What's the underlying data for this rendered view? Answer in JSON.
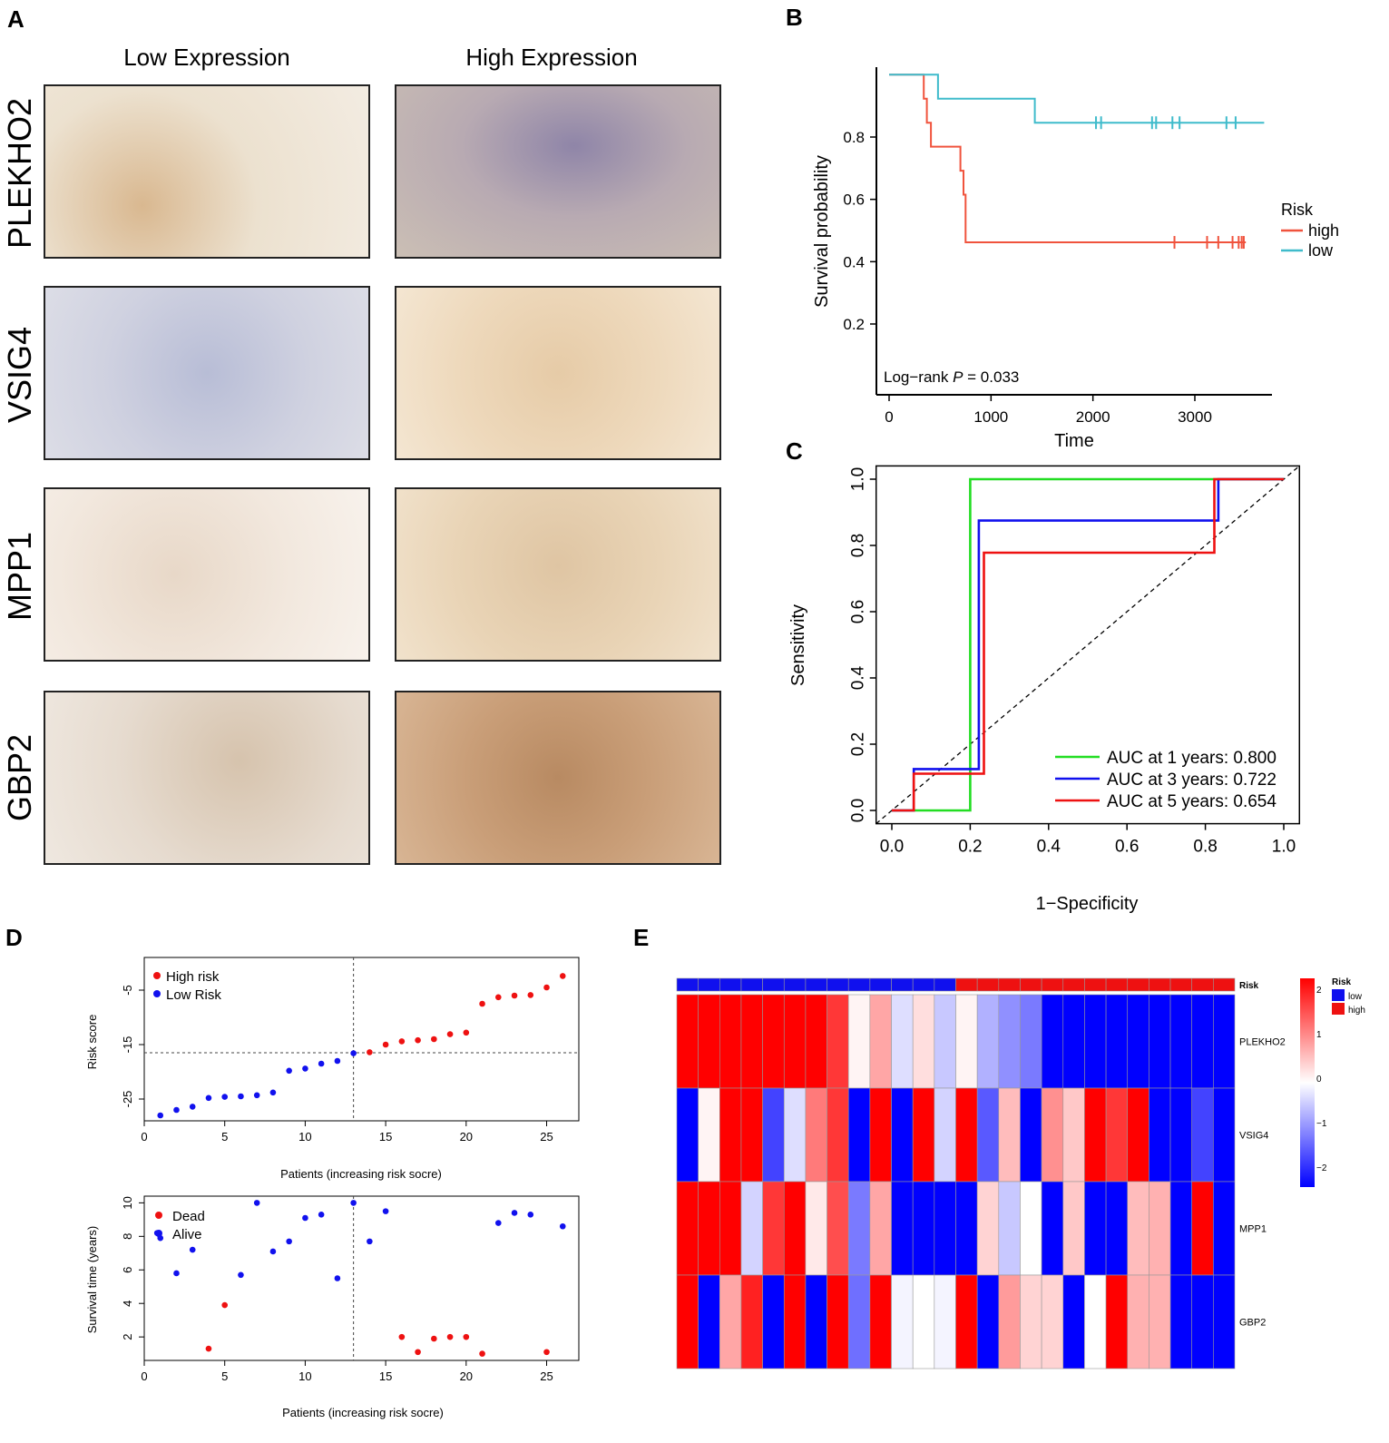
{
  "panel_letters": [
    "A",
    "B",
    "C",
    "D",
    "E"
  ],
  "panel_a": {
    "column_headers": [
      "Low Expression",
      "High Expression"
    ],
    "genes": [
      "PLEKHO2",
      "VSIG4",
      "MPP1",
      "GBP2"
    ]
  },
  "chart_data": [
    {
      "id": "B",
      "type": "line",
      "subtype": "kaplan-meier",
      "xlabel": "Time",
      "ylabel": "Survival probability",
      "x_ticks": [
        0,
        1000,
        2000,
        3000
      ],
      "y_ticks": [
        0.2,
        0.4,
        0.6,
        0.8
      ],
      "xlim": [
        -50,
        3700
      ],
      "ylim": [
        0.0,
        1.0
      ],
      "annotation": "Log−rank P = 0.033",
      "annotation_prefix": "Log−rank ",
      "annotation_p": "P",
      "annotation_suffix": " = 0.033",
      "legend_title": "Risk",
      "series": [
        {
          "name": "high",
          "color": "#F0533D",
          "steps": [
            [
              0,
              1.0
            ],
            [
              340,
              1.0
            ],
            [
              340,
              0.923
            ],
            [
              370,
              0.923
            ],
            [
              370,
              0.846
            ],
            [
              410,
              0.846
            ],
            [
              410,
              0.769
            ],
            [
              700,
              0.769
            ],
            [
              700,
              0.692
            ],
            [
              730,
              0.692
            ],
            [
              730,
              0.615
            ],
            [
              750,
              0.615
            ],
            [
              750,
              0.462
            ],
            [
              3500,
              0.462
            ]
          ],
          "censors": [
            [
              2800,
              0.462
            ],
            [
              3120,
              0.462
            ],
            [
              3230,
              0.462
            ],
            [
              3370,
              0.462
            ],
            [
              3430,
              0.462
            ],
            [
              3460,
              0.462
            ],
            [
              3480,
              0.462
            ]
          ]
        },
        {
          "name": "low",
          "color": "#3FBBCB",
          "steps": [
            [
              0,
              1.0
            ],
            [
              480,
              1.0
            ],
            [
              480,
              0.923
            ],
            [
              1430,
              0.923
            ],
            [
              1430,
              0.846
            ],
            [
              3680,
              0.846
            ]
          ],
          "censors": [
            [
              2030,
              0.846
            ],
            [
              2080,
              0.846
            ],
            [
              2580,
              0.846
            ],
            [
              2620,
              0.846
            ],
            [
              2780,
              0.846
            ],
            [
              2850,
              0.846
            ],
            [
              3310,
              0.846
            ],
            [
              3400,
              0.846
            ]
          ]
        }
      ]
    },
    {
      "id": "C",
      "type": "line",
      "subtype": "roc",
      "xlabel": "1−Specificity",
      "ylabel": "Sensitivity",
      "x_ticks": [
        "0.0",
        "0.2",
        "0.4",
        "0.6",
        "0.8",
        "1.0"
      ],
      "y_ticks": [
        "0.0",
        "0.2",
        "0.4",
        "0.6",
        "0.8",
        "1.0"
      ],
      "xlim": [
        -0.04,
        1.04
      ],
      "ylim": [
        -0.04,
        1.04
      ],
      "series": [
        {
          "name": "AUC at 1 years: 0.800",
          "color": "#22DD22",
          "points": [
            [
              0,
              0
            ],
            [
              0.056,
              0
            ],
            [
              0.056,
              0
            ],
            [
              0.2,
              0
            ],
            [
              0.2,
              1.0
            ],
            [
              1.0,
              1.0
            ]
          ]
        },
        {
          "name": "AUC at 3 years: 0.722",
          "color": "#1010EE",
          "points": [
            [
              0,
              0
            ],
            [
              0.056,
              0
            ],
            [
              0.056,
              0.125
            ],
            [
              0.222,
              0.125
            ],
            [
              0.222,
              0.875
            ],
            [
              0.833,
              0.875
            ],
            [
              0.833,
              1.0
            ],
            [
              1.0,
              1.0
            ]
          ]
        },
        {
          "name": "AUC at 5 years: 0.654",
          "color": "#EE1111",
          "points": [
            [
              0,
              0
            ],
            [
              0.056,
              0
            ],
            [
              0.056,
              0.111
            ],
            [
              0.235,
              0.111
            ],
            [
              0.235,
              0.778
            ],
            [
              0.823,
              0.778
            ],
            [
              0.823,
              1.0
            ],
            [
              1.0,
              1.0
            ]
          ]
        }
      ]
    },
    {
      "id": "D-risk",
      "type": "scatter",
      "xlabel": "Patients (increasing risk socre)",
      "ylabel": "Risk score",
      "x_ticks": [
        0,
        5,
        10,
        15,
        20,
        25
      ],
      "y_ticks": [
        -25,
        -15,
        -5
      ],
      "xlim": [
        0,
        27
      ],
      "ylim": [
        -29,
        1
      ],
      "cutoff_x": 13,
      "cutoff_y": -16.5,
      "series": [
        {
          "name": "High risk",
          "color": "#EE1111",
          "x": [
            14,
            15,
            16,
            17,
            18,
            19,
            20,
            21,
            22,
            23,
            24,
            25,
            26
          ],
          "y": [
            -16.4,
            -15.0,
            -14.4,
            -14.2,
            -14.0,
            -13.1,
            -12.8,
            -7.5,
            -6.3,
            -6.0,
            -5.9,
            -4.5,
            -2.4
          ]
        },
        {
          "name": "Low Risk",
          "color": "#1111EE",
          "x": [
            1,
            2,
            3,
            4,
            5,
            6,
            7,
            8,
            9,
            10,
            11,
            12,
            13
          ],
          "y": [
            -28.0,
            -27.0,
            -26.4,
            -24.8,
            -24.6,
            -24.5,
            -24.3,
            -23.8,
            -19.8,
            -19.4,
            -18.5,
            -18.0,
            -16.6
          ]
        }
      ]
    },
    {
      "id": "D-survival",
      "type": "scatter",
      "xlabel": "Patients (increasing risk socre)",
      "ylabel": "Survival time (years)",
      "x_ticks": [
        0,
        5,
        10,
        15,
        20,
        25
      ],
      "y_ticks": [
        2,
        4,
        6,
        8,
        10
      ],
      "xlim": [
        0,
        27
      ],
      "ylim": [
        0.6,
        10.4
      ],
      "cutoff_x": 13,
      "series": [
        {
          "name": "Dead",
          "color": "#EE1111",
          "x": [
            4,
            5,
            16,
            17,
            18,
            19,
            20,
            21,
            25
          ],
          "y": [
            1.3,
            3.9,
            2.0,
            1.1,
            1.9,
            2.0,
            2.0,
            1.0,
            1.1
          ]
        },
        {
          "name": "Alive",
          "color": "#1111EE",
          "x": [
            0.8,
            1,
            2,
            3,
            6,
            7,
            8,
            9,
            10,
            11,
            12,
            13,
            14,
            15,
            22,
            23,
            24,
            26
          ],
          "y": [
            8.2,
            7.9,
            5.8,
            7.2,
            5.7,
            10.0,
            7.1,
            7.7,
            9.1,
            9.3,
            5.5,
            10.0,
            7.7,
            9.5,
            8.8,
            9.4,
            9.3,
            8.6
          ]
        }
      ]
    },
    {
      "id": "E",
      "type": "heatmap",
      "annotation_label": "Risk",
      "rows": [
        "PLEKHO2",
        "VSIG4",
        "MPP1",
        "GBP2"
      ],
      "risk_groups": [
        "low",
        "low",
        "low",
        "low",
        "low",
        "low",
        "low",
        "low",
        "low",
        "low",
        "low",
        "low",
        "low",
        "high",
        "high",
        "high",
        "high",
        "high",
        "high",
        "high",
        "high",
        "high",
        "high",
        "high",
        "high",
        "high"
      ],
      "values": [
        [
          2.4,
          2.4,
          2.4,
          2.4,
          2.4,
          2.4,
          2.4,
          1.8,
          0.1,
          0.8,
          -0.3,
          0.3,
          -0.5,
          0.1,
          -0.7,
          -1.0,
          -1.2,
          -2.3,
          -2.3,
          -2.3,
          -2.3,
          -2.3,
          -2.3,
          -2.3,
          -2.3,
          -2.3
        ],
        [
          -2.3,
          0.1,
          2.4,
          2.4,
          -1.7,
          -0.3,
          1.2,
          1.8,
          -2.3,
          2.4,
          -2.3,
          2.4,
          -0.4,
          2.4,
          -1.5,
          0.6,
          -2.3,
          1.0,
          0.5,
          2.4,
          1.8,
          2.4,
          -2.3,
          -2.3,
          -1.7,
          -2.3
        ],
        [
          2.4,
          2.4,
          2.4,
          -0.4,
          1.8,
          2.4,
          0.2,
          1.6,
          -1.2,
          0.8,
          -2.3,
          -2.3,
          -2.3,
          -2.3,
          0.4,
          -0.5,
          0.0,
          -2.3,
          0.5,
          -2.3,
          -2.3,
          0.6,
          0.7,
          -2.3,
          2.4,
          -2.3
        ],
        [
          2.4,
          -2.3,
          0.8,
          2.0,
          -2.3,
          2.4,
          -2.3,
          2.4,
          -1.3,
          2.4,
          -0.1,
          0.0,
          -0.1,
          2.4,
          -2.3,
          0.9,
          0.4,
          0.4,
          -2.3,
          0.0,
          2.4,
          0.7,
          0.7,
          -2.3,
          -2.3,
          -2.3
        ]
      ],
      "colorbar_ticks": [
        "2",
        "1",
        "0",
        "−1",
        "−2"
      ],
      "legend_title": "Risk",
      "legend_items": [
        {
          "label": "low",
          "color": "#1010EE"
        },
        {
          "label": "high",
          "color": "#EE1111"
        }
      ]
    }
  ]
}
